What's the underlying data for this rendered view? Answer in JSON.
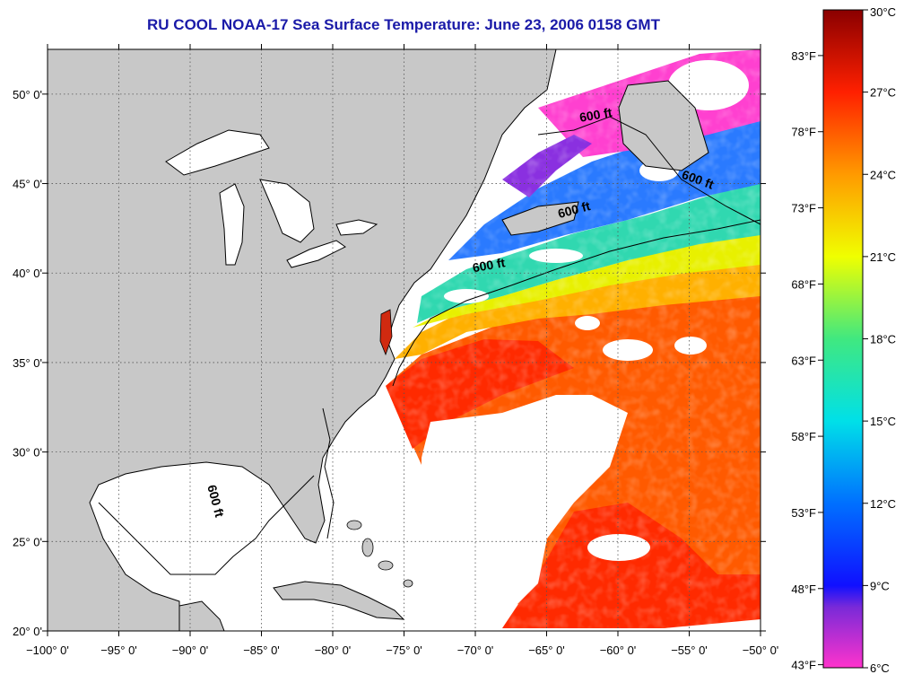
{
  "title": "RU COOL  NOAA-17  Sea Surface Temperature:  June 23, 2006 0158 GMT",
  "map": {
    "lon_range": [
      -100,
      -50
    ],
    "lat_range": [
      20,
      52.5
    ],
    "lon_ticks": [
      {
        "v": -100,
        "label": "−100° 0'"
      },
      {
        "v": -95,
        "label": "−95° 0'"
      },
      {
        "v": -90,
        "label": "−90° 0'"
      },
      {
        "v": -85,
        "label": "−85° 0'"
      },
      {
        "v": -80,
        "label": "−80° 0'"
      },
      {
        "v": -75,
        "label": "−75° 0'"
      },
      {
        "v": -70,
        "label": "−70° 0'"
      },
      {
        "v": -65,
        "label": "−65° 0'"
      },
      {
        "v": -60,
        "label": "−60° 0'"
      },
      {
        "v": -55,
        "label": "−55° 0'"
      },
      {
        "v": -50,
        "label": "−50° 0'"
      }
    ],
    "lat_ticks": [
      {
        "v": 20,
        "label": "20° 0'"
      },
      {
        "v": 25,
        "label": "25° 0'"
      },
      {
        "v": 30,
        "label": "30° 0'"
      },
      {
        "v": 35,
        "label": "35° 0'"
      },
      {
        "v": 40,
        "label": "40° 0'"
      },
      {
        "v": 45,
        "label": "45° 0'"
      },
      {
        "v": 50,
        "label": "50° 0'"
      }
    ],
    "gridlines": true,
    "contour_label": "600 ft",
    "contour_labels": [
      {
        "lon": -61.5,
        "lat": 48.6,
        "rot": -10
      },
      {
        "lon": -54.5,
        "lat": 45,
        "rot": 20
      },
      {
        "lon": -63,
        "lat": 43.3,
        "rot": -15
      },
      {
        "lon": -69,
        "lat": 40.2,
        "rot": -10
      },
      {
        "lon": -88.5,
        "lat": 27.2,
        "rot": 75
      }
    ],
    "colors": {
      "land": "#c8c8c8",
      "ocean_nodata": "#ffffff",
      "coastline": "#000000",
      "grid": "#555555"
    }
  },
  "colorbar": {
    "celsius": [
      {
        "v": 30,
        "label": "30°C"
      },
      {
        "v": 27,
        "label": "27°C"
      },
      {
        "v": 24,
        "label": "24°C"
      },
      {
        "v": 21,
        "label": "21°C"
      },
      {
        "v": 18,
        "label": "18°C"
      },
      {
        "v": 15,
        "label": "15°C"
      },
      {
        "v": 12,
        "label": "12°C"
      },
      {
        "v": 9,
        "label": "9°C"
      },
      {
        "v": 6,
        "label": "6°C"
      }
    ],
    "fahrenheit": [
      {
        "v": 83,
        "label": "83°F"
      },
      {
        "v": 78,
        "label": "78°F"
      },
      {
        "v": 73,
        "label": "73°F"
      },
      {
        "v": 68,
        "label": "68°F"
      },
      {
        "v": 63,
        "label": "63°F"
      },
      {
        "v": 58,
        "label": "58°F"
      },
      {
        "v": 53,
        "label": "53°F"
      },
      {
        "v": 48,
        "label": "48°F"
      },
      {
        "v": 43,
        "label": "43°F"
      }
    ],
    "range_c": [
      6,
      30
    ],
    "stops": [
      {
        "c": 6,
        "color": "#ff33cc"
      },
      {
        "c": 8.2,
        "color": "#7a2ad8"
      },
      {
        "c": 9,
        "color": "#1010ff"
      },
      {
        "c": 12,
        "color": "#0070ff"
      },
      {
        "c": 15,
        "color": "#00e0e8"
      },
      {
        "c": 18,
        "color": "#40e880"
      },
      {
        "c": 21,
        "color": "#f0ff00"
      },
      {
        "c": 24,
        "color": "#ff9a00"
      },
      {
        "c": 27,
        "color": "#ff2000"
      },
      {
        "c": 30,
        "color": "#8a0000"
      }
    ]
  }
}
